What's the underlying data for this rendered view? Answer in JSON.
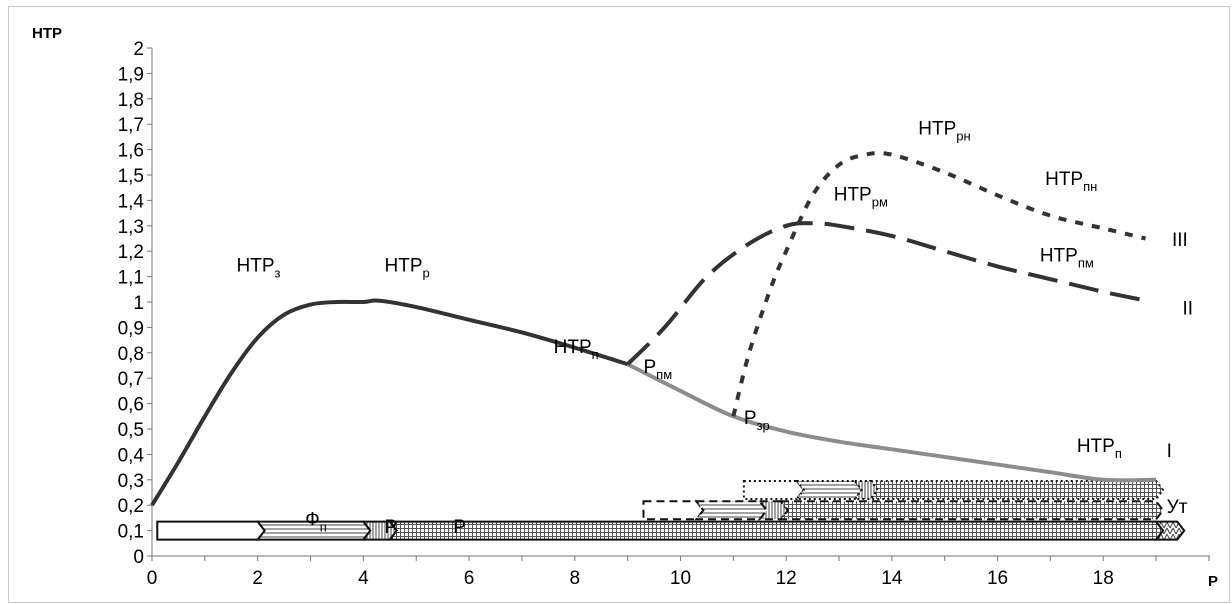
{
  "chart_data": {
    "type": "line",
    "ylabel": "НТР",
    "xlabel": "Р",
    "xlim": [
      0,
      20
    ],
    "ylim": [
      0,
      2
    ],
    "x_ticks": [
      "0",
      "2",
      "4",
      "6",
      "8",
      "10",
      "12",
      "14",
      "16",
      "18"
    ],
    "y_ticks": [
      "0",
      "0,1",
      "0,2",
      "0,3",
      "0,4",
      "0,5",
      "0,6",
      "0,7",
      "0,8",
      "0,9",
      "1",
      "1,1",
      "1,2",
      "1,3",
      "1,4",
      "1,5",
      "1,6",
      "1,7",
      "1,8",
      "1,9",
      "2"
    ],
    "grid": false,
    "series": [
      {
        "name": "I",
        "style": "solid",
        "color": "#333333",
        "points": [
          [
            0,
            0.2
          ],
          [
            0.5,
            0.37
          ],
          [
            1,
            0.55
          ],
          [
            1.5,
            0.72
          ],
          [
            2,
            0.86
          ],
          [
            2.5,
            0.95
          ],
          [
            3,
            0.99
          ],
          [
            3.5,
            1.0
          ],
          [
            4,
            1.0
          ],
          [
            4.3,
            1.005
          ],
          [
            5,
            0.98
          ],
          [
            6,
            0.93
          ],
          [
            7,
            0.88
          ],
          [
            8,
            0.82
          ],
          [
            9,
            0.755
          ]
        ]
      },
      {
        "name": "I",
        "style": "solid",
        "color": "#8c8c8c",
        "points": [
          [
            9,
            0.755
          ],
          [
            10,
            0.65
          ],
          [
            11,
            0.55
          ],
          [
            12,
            0.49
          ],
          [
            13,
            0.45
          ],
          [
            14,
            0.42
          ],
          [
            15,
            0.39
          ],
          [
            16,
            0.36
          ],
          [
            17,
            0.33
          ],
          [
            18,
            0.3
          ],
          [
            19,
            0.3
          ]
        ]
      },
      {
        "name": "II",
        "style": "dashed",
        "color": "#333333",
        "points": [
          [
            9,
            0.755
          ],
          [
            9.7,
            0.9
          ],
          [
            10.5,
            1.1
          ],
          [
            11.3,
            1.23
          ],
          [
            12,
            1.3
          ],
          [
            12.5,
            1.31
          ],
          [
            13,
            1.3
          ],
          [
            14,
            1.26
          ],
          [
            15,
            1.2
          ],
          [
            16,
            1.14
          ],
          [
            17,
            1.09
          ],
          [
            18,
            1.04
          ],
          [
            18.7,
            1.01
          ]
        ]
      },
      {
        "name": "III",
        "style": "dotted",
        "color": "#333333",
        "points": [
          [
            11,
            0.55
          ],
          [
            11.3,
            0.8
          ],
          [
            11.7,
            1.05
          ],
          [
            12,
            1.2
          ],
          [
            12.5,
            1.42
          ],
          [
            13,
            1.54
          ],
          [
            13.5,
            1.58
          ],
          [
            14,
            1.58
          ],
          [
            15,
            1.51
          ],
          [
            16,
            1.42
          ],
          [
            17,
            1.34
          ],
          [
            18,
            1.29
          ],
          [
            18.8,
            1.25
          ]
        ]
      }
    ],
    "annotations": [
      {
        "main": "НТР",
        "sub": "з",
        "x": 1.6,
        "y": 1.12
      },
      {
        "main": "НТР",
        "sub": "р",
        "x": 4.4,
        "y": 1.12
      },
      {
        "main": "НТР",
        "sub": "п",
        "x": 7.6,
        "y": 0.8
      },
      {
        "main": "Р",
        "sub": "пм",
        "x": 9.3,
        "y": 0.72
      },
      {
        "main": "Р",
        "sub": "зр",
        "x": 11.2,
        "y": 0.52
      },
      {
        "main": "НТР",
        "sub": "рм",
        "x": 12.9,
        "y": 1.4
      },
      {
        "main": "НТР",
        "sub": "рн",
        "x": 14.5,
        "y": 1.66
      },
      {
        "main": "НТР",
        "sub": "пн",
        "x": 16.9,
        "y": 1.46
      },
      {
        "main": "НТР",
        "sub": "пм",
        "x": 16.8,
        "y": 1.16
      },
      {
        "main": "НТР",
        "sub": "п",
        "x": 17.5,
        "y": 0.41
      },
      {
        "main": "III",
        "sub": "",
        "x": 19.3,
        "y": 1.22
      },
      {
        "main": "II",
        "sub": "",
        "x": 19.5,
        "y": 0.95
      },
      {
        "main": "I",
        "sub": "",
        "x": 19.2,
        "y": 0.39
      },
      {
        "main": "Ут",
        "sub": "",
        "x": 19.2,
        "y": 0.17
      },
      {
        "main": "Ф",
        "sub": "п",
        "x": 2.9,
        "y": 0.12
      },
      {
        "main": "Р",
        "sub": "",
        "x": 4.4,
        "y": 0.09
      },
      {
        "main": "Р",
        "sub": "",
        "x": 5.7,
        "y": 0.09
      }
    ],
    "bars": [
      {
        "start": 0.1,
        "end": 2.0,
        "level": 0.1,
        "fill": "white",
        "border": "solid"
      },
      {
        "start": 2.0,
        "end": 4.0,
        "level": 0.1,
        "fill": "lines",
        "border": "solid"
      },
      {
        "start": 4.0,
        "end": 4.5,
        "level": 0.1,
        "fill": "vlines",
        "border": "solid"
      },
      {
        "start": 4.5,
        "end": 19.0,
        "level": 0.1,
        "fill": "grid",
        "border": "solid"
      },
      {
        "start": 19.0,
        "end": 19.4,
        "level": 0.1,
        "fill": "zigzag",
        "border": "solid"
      },
      {
        "start": 9.3,
        "end": 10.3,
        "level": 0.18,
        "fill": "white",
        "border": "dashed"
      },
      {
        "start": 10.3,
        "end": 11.5,
        "level": 0.18,
        "fill": "lines",
        "border": "dashed"
      },
      {
        "start": 11.5,
        "end": 11.9,
        "level": 0.18,
        "fill": "vlines",
        "border": "dashed"
      },
      {
        "start": 11.9,
        "end": 19.0,
        "level": 0.18,
        "fill": "grid",
        "border": "dashed"
      },
      {
        "start": 11.2,
        "end": 12.2,
        "level": 0.26,
        "fill": "white",
        "border": "dotted"
      },
      {
        "start": 12.2,
        "end": 13.3,
        "level": 0.26,
        "fill": "lines",
        "border": "dotted"
      },
      {
        "start": 13.3,
        "end": 13.6,
        "level": 0.26,
        "fill": "vlines",
        "border": "dotted"
      },
      {
        "start": 13.6,
        "end": 19.0,
        "level": 0.26,
        "fill": "grid",
        "border": "dotted"
      }
    ]
  }
}
